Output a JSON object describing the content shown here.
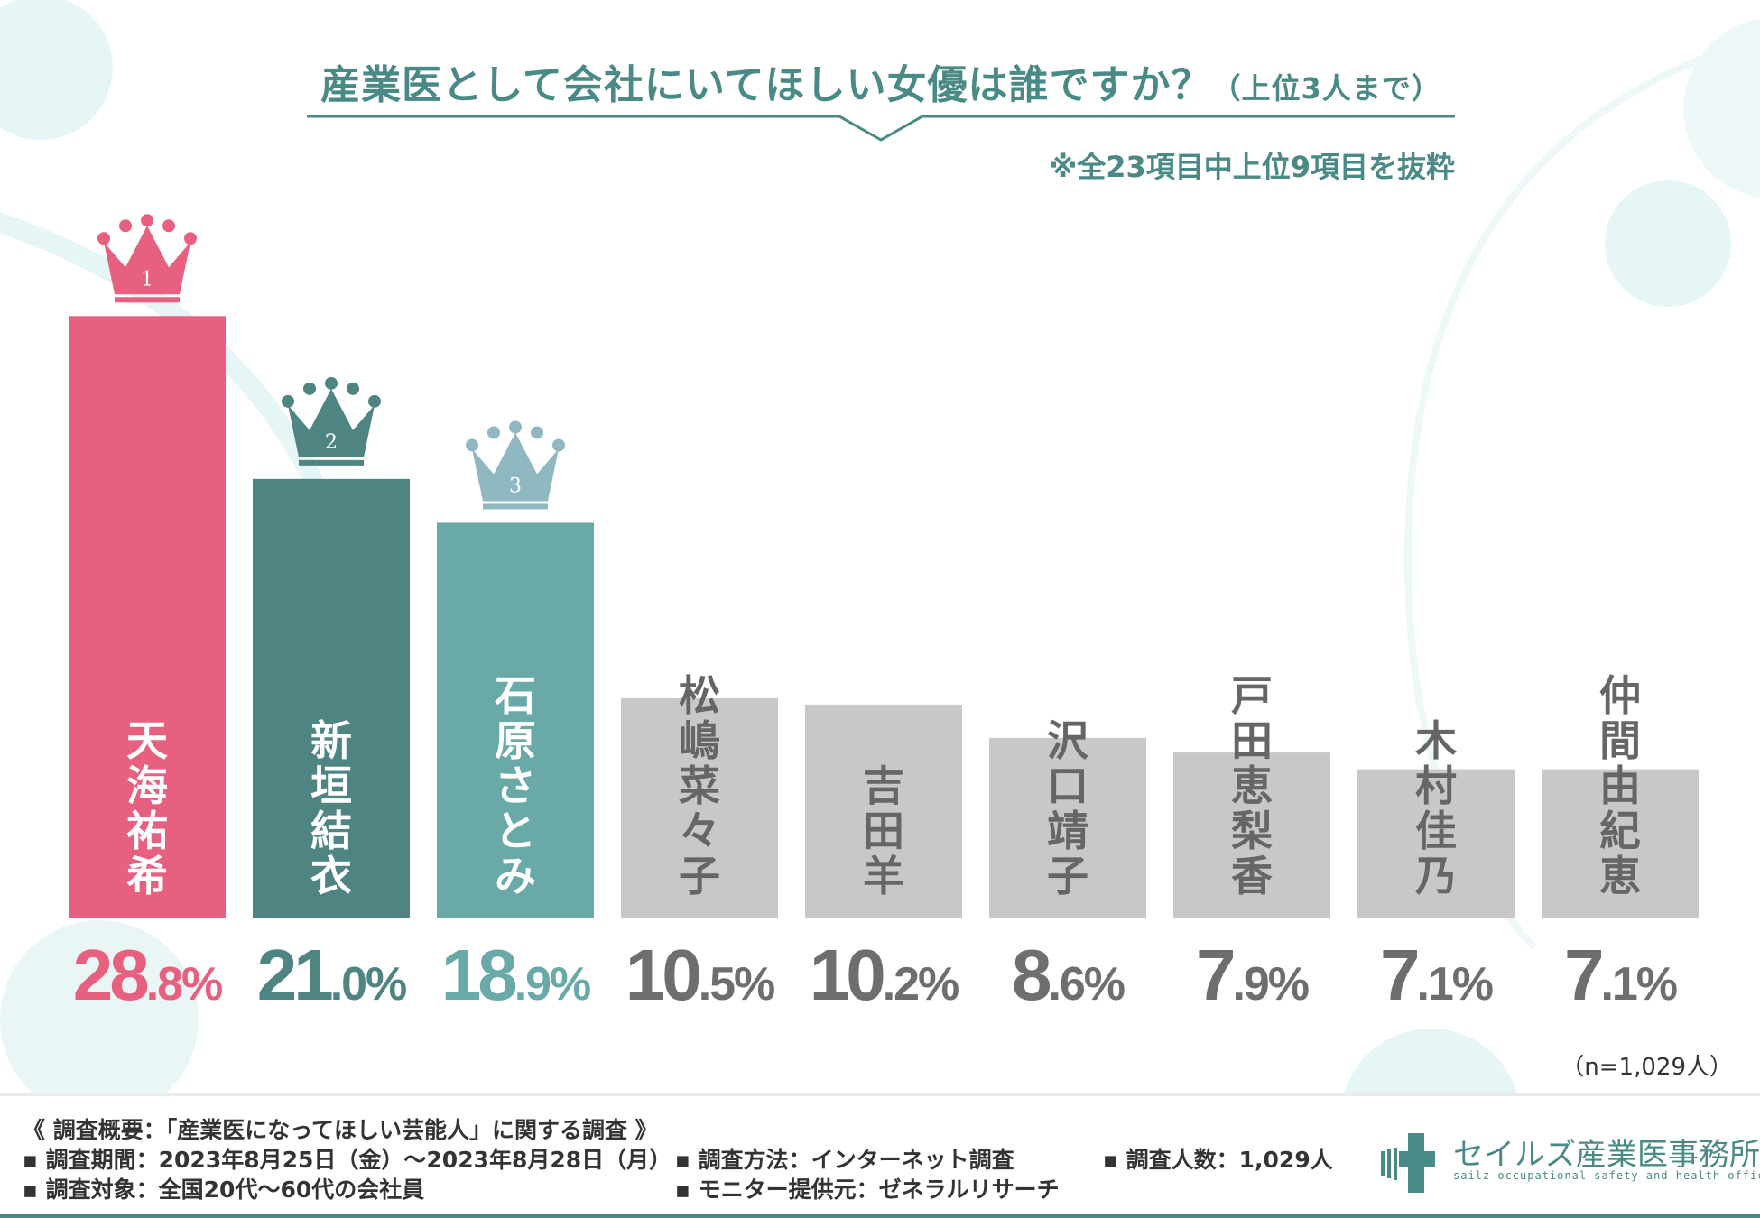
{
  "header": {
    "title_main": "産業医として会社にいてほしい女優は誰ですか？",
    "title_sub": "（上位3人まで）",
    "note": "※全23項目中上位9項目を抜粋"
  },
  "chart_data": {
    "type": "bar",
    "title": "産業医として会社にいてほしい女優は誰ですか？（上位3人まで）",
    "categories": [
      "天海祐希",
      "新垣結衣",
      "石原さとみ",
      "松嶋菜々子",
      "吉田羊",
      "沢口靖子",
      "戸田恵梨香",
      "木村佳乃",
      "仲間由紀恵"
    ],
    "values": [
      28.8,
      21.0,
      18.9,
      10.5,
      10.2,
      8.6,
      7.9,
      7.1,
      7.1
    ],
    "value_labels": [
      {
        "int": "28",
        "dec": ".8%"
      },
      {
        "int": "21",
        "dec": ".0%"
      },
      {
        "int": "18",
        "dec": ".9%"
      },
      {
        "int": "10",
        "dec": ".5%"
      },
      {
        "int": "10",
        "dec": ".2%"
      },
      {
        "int": "8",
        "dec": ".6%"
      },
      {
        "int": "7",
        "dec": ".9%"
      },
      {
        "int": "7",
        "dec": ".1%"
      },
      {
        "int": "7",
        "dec": ".1%"
      }
    ],
    "unit": "%",
    "ranks": [
      "1",
      "2",
      "3"
    ],
    "colors": [
      "#e8607f",
      "#4e8583",
      "#69a9a7",
      "#c8c8c8",
      "#c8c8c8",
      "#c8c8c8",
      "#c8c8c8",
      "#c8c8c8",
      "#c8c8c8"
    ],
    "label_colors": [
      "#e8607f",
      "#4e8583",
      "#69a9a7",
      "#6e6e6e",
      "#6e6e6e",
      "#6e6e6e",
      "#6e6e6e",
      "#6e6e6e",
      "#6e6e6e"
    ],
    "crown_colors": [
      "#e8607f",
      "#4e8583",
      "#8fb8c0"
    ],
    "name_colors": [
      "#ffffff",
      "#ffffff",
      "#ffffff",
      "#666666",
      "#666666",
      "#666666",
      "#666666",
      "#666666",
      "#666666"
    ],
    "grid": false,
    "legend": "none"
  },
  "sample_size": "（n=1,029人）",
  "footer": {
    "overview": "《 調査概要：「産業医になってほしい芸能人」に関する調査 》",
    "period": "▪ 調査期間：2023年8月25日（金）～2023年8月28日（月）",
    "target": "▪ 調査対象：全国20代～60代の会社員",
    "method": "▪ 調査方法：インターネット調査",
    "provider": "▪ モニター提供元：ゼネラルリサーチ",
    "count": "▪ 調査人数：1,029人"
  },
  "logo": {
    "name": "セイルズ産業医事務所",
    "tagline": "sailz occupational safety and health office"
  },
  "colors": {
    "accent": "#4a8a86",
    "decor": "#e6f5f5"
  }
}
